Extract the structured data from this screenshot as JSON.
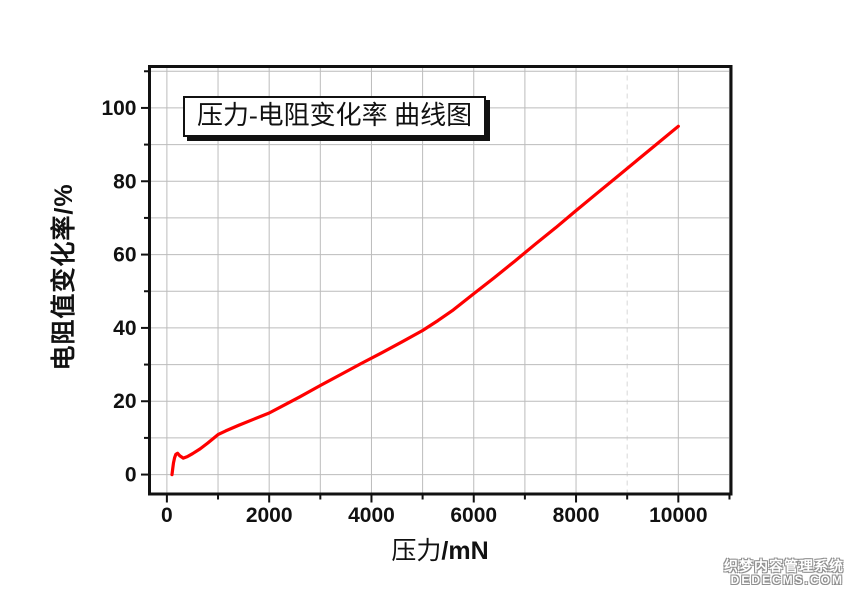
{
  "chart_data": {
    "type": "line",
    "title": "压力-电阻变化率 曲线图",
    "xlabel": "压力/mN",
    "xlabel_cn": "压力",
    "xlabel_unit": "/mN",
    "ylabel": "电阻值变化率/%",
    "xlim": [
      -340,
      11030
    ],
    "ylim": [
      -5.3,
      111.3
    ],
    "x_ticks_major": [
      0,
      2000,
      4000,
      6000,
      8000,
      10000
    ],
    "x_ticks_minor": [
      1000,
      3000,
      5000,
      7000,
      9000,
      11000
    ],
    "y_ticks_major": [
      0,
      20,
      40,
      60,
      80,
      100
    ],
    "y_ticks_minor": [
      10,
      30,
      50,
      70,
      90,
      110
    ],
    "grid": {
      "x_every": 1000,
      "y_every": 10,
      "color": "#bcbcbc",
      "dashed_x": 9000,
      "dashed_color": "#d8d8d8",
      "on": true
    },
    "legend_position": "none",
    "axis_color": "#111111",
    "line_color": "#ff0000",
    "series": [
      {
        "name": "压力-电阻变化率",
        "points": [
          [
            100,
            0
          ],
          [
            115,
            1.8
          ],
          [
            130,
            3.2
          ],
          [
            150,
            4.6
          ],
          [
            175,
            5.5
          ],
          [
            210,
            5.8
          ],
          [
            255,
            5.1
          ],
          [
            320,
            4.5
          ],
          [
            400,
            4.9
          ],
          [
            500,
            5.7
          ],
          [
            650,
            7.0
          ],
          [
            800,
            8.6
          ],
          [
            1000,
            10.9
          ],
          [
            1150,
            11.9
          ],
          [
            1400,
            13.4
          ],
          [
            1700,
            15.1
          ],
          [
            2000,
            16.8
          ],
          [
            2300,
            19.0
          ],
          [
            2600,
            21.2
          ],
          [
            3000,
            24.3
          ],
          [
            3400,
            27.3
          ],
          [
            3800,
            30.3
          ],
          [
            4200,
            33.2
          ],
          [
            4600,
            36.2
          ],
          [
            5000,
            39.3
          ],
          [
            5300,
            42.0
          ],
          [
            5600,
            44.9
          ],
          [
            6000,
            49.3
          ],
          [
            6400,
            53.7
          ],
          [
            6800,
            58.2
          ],
          [
            7200,
            62.8
          ],
          [
            7600,
            67.3
          ],
          [
            8000,
            72.0
          ],
          [
            8400,
            76.6
          ],
          [
            8800,
            81.2
          ],
          [
            9200,
            85.8
          ],
          [
            9600,
            90.4
          ],
          [
            10000,
            95.0
          ]
        ]
      }
    ]
  },
  "watermark": {
    "line1": "织梦内容管理系统",
    "line2": "DEDECMS.COM"
  }
}
